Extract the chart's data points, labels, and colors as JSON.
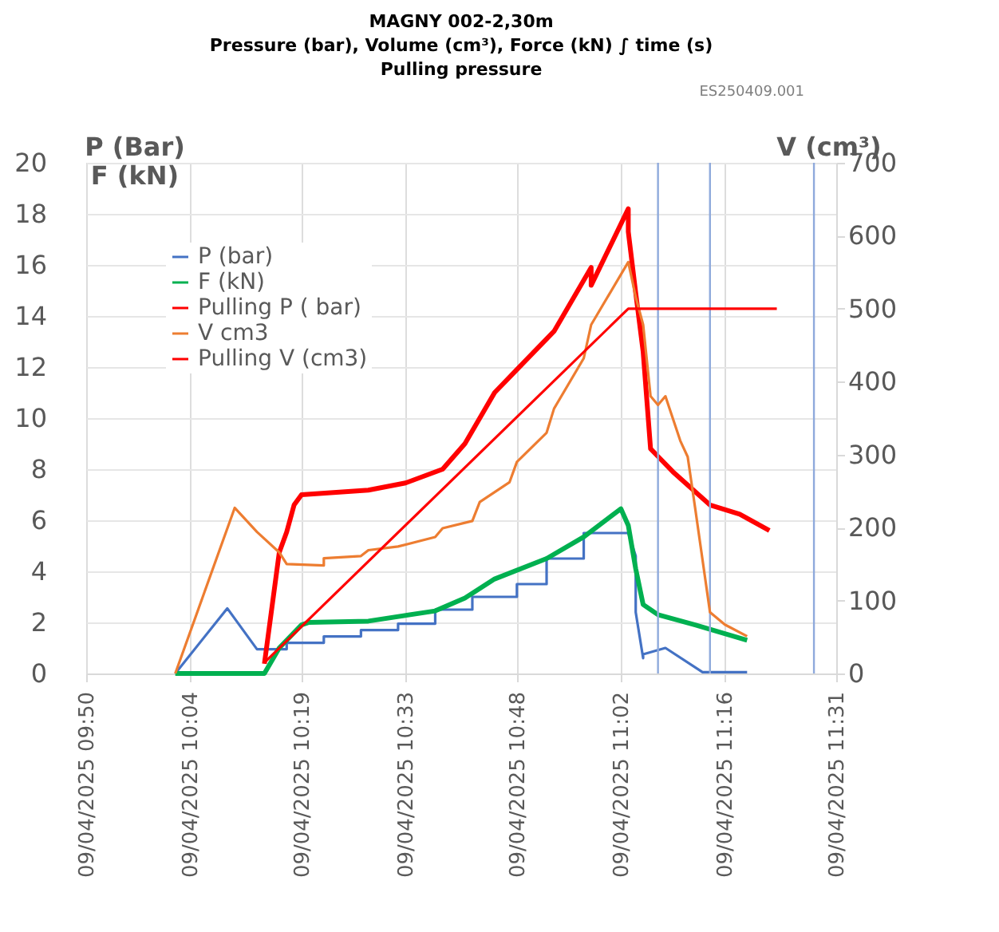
{
  "chart_data": {
    "type": "line",
    "title": "MAGNY 002-2,30m\nPressure (bar), Volume (cm³), Force (kN) ∫ time (s)\nPulling pressure",
    "ylabel": "P (Bar)\nF (kN)",
    "y2label": "V (cm³)",
    "annotations": [
      "ES250409.001"
    ],
    "xlim": [
      "2025-04-09T09:50",
      "2025-04-09T11:31"
    ],
    "xticks": [
      {
        "value": "2025-04-09T09:50",
        "label": "09/04/2025 09:50"
      },
      {
        "value": "2025-04-09T10:04",
        "label": "09/04/2025 10:04"
      },
      {
        "value": "2025-04-09T10:19",
        "label": "09/04/2025 10:19"
      },
      {
        "value": "2025-04-09T10:33",
        "label": "09/04/2025 10:33"
      },
      {
        "value": "2025-04-09T10:48",
        "label": "09/04/2025 10:48"
      },
      {
        "value": "2025-04-09T11:02",
        "label": "09/04/2025 11:02"
      },
      {
        "value": "2025-04-09T11:16",
        "label": "09/04/2025 11:16"
      },
      {
        "value": "2025-04-09T11:31",
        "label": "09/04/2025 11:31"
      }
    ],
    "ylim": [
      0,
      20
    ],
    "yticks": [
      0,
      2,
      4,
      6,
      8,
      10,
      12,
      14,
      16,
      18,
      20
    ],
    "y2lim": [
      0,
      700
    ],
    "y2ticks": [
      0,
      100,
      200,
      300,
      400,
      500,
      600,
      700
    ],
    "grid": true,
    "legend": "top left",
    "marker": "none",
    "line_style": "solid",
    "series": [
      {
        "name": "P (bar)",
        "color": "#4472c4",
        "x": [
          "2025-04-09T10:02",
          "2025-04-09T10:09",
          "2025-04-09T10:13",
          "2025-04-09T10:17",
          "2025-04-09T10:17",
          "2025-04-09T10:22",
          "2025-04-09T10:22",
          "2025-04-09T10:27",
          "2025-04-09T10:27",
          "2025-04-09T10:32",
          "2025-04-09T10:32",
          "2025-04-09T10:37",
          "2025-04-09T10:37",
          "2025-04-09T10:42",
          "2025-04-09T10:42",
          "2025-04-09T10:48",
          "2025-04-09T10:48",
          "2025-04-09T10:52",
          "2025-04-09T10:52",
          "2025-04-09T10:57",
          "2025-04-09T10:57",
          "2025-04-09T11:03",
          "2025-04-09T11:04",
          "2025-04-09T11:04",
          "2025-04-09T11:05",
          "2025-04-09T11:05",
          "2025-04-09T11:08",
          "2025-04-09T11:13",
          "2025-04-09T11:19"
        ],
        "values": [
          0,
          2.55,
          0.95,
          0.95,
          1.2,
          1.2,
          1.45,
          1.45,
          1.7,
          1.7,
          1.95,
          1.95,
          2.5,
          2.5,
          3.0,
          3.0,
          3.5,
          3.5,
          4.5,
          4.5,
          5.5,
          5.5,
          4.6,
          2.4,
          0.6,
          0.75,
          1.0,
          0.05,
          0.05
        ]
      },
      {
        "name": "F (kN)",
        "color": "#00b050",
        "x": [
          "2025-04-09T10:02",
          "2025-04-09T10:14",
          "2025-04-09T10:16",
          "2025-04-09T10:19",
          "2025-04-09T10:20",
          "2025-04-09T10:28",
          "2025-04-09T10:37",
          "2025-04-09T10:41",
          "2025-04-09T10:45",
          "2025-04-09T10:52",
          "2025-04-09T10:57",
          "2025-04-09T11:02",
          "2025-04-09T11:03",
          "2025-04-09T11:04",
          "2025-04-09T11:05",
          "2025-04-09T11:07",
          "2025-04-09T11:12",
          "2025-04-09T11:19"
        ],
        "values": [
          0,
          0,
          1.0,
          1.9,
          2.0,
          2.05,
          2.45,
          2.95,
          3.7,
          4.5,
          5.35,
          6.45,
          5.8,
          4.1,
          2.7,
          2.3,
          1.9,
          1.3
        ]
      },
      {
        "name": "Pulling P ( bar)",
        "color": "#ff0000",
        "x": [
          "2025-04-09T10:14",
          "2025-04-09T10:16",
          "2025-04-09T10:17",
          "2025-04-09T10:18",
          "2025-04-09T10:19",
          "2025-04-09T10:28",
          "2025-04-09T10:33",
          "2025-04-09T10:38",
          "2025-04-09T10:41",
          "2025-04-09T10:45",
          "2025-04-09T10:48",
          "2025-04-09T10:53",
          "2025-04-09T10:58",
          "2025-04-09T10:58",
          "2025-04-09T11:03",
          "2025-04-09T11:03",
          "2025-04-09T11:04",
          "2025-04-09T11:05",
          "2025-04-09T11:06",
          "2025-04-09T11:07",
          "2025-04-09T11:09",
          "2025-04-09T11:14",
          "2025-04-09T11:18",
          "2025-04-09T11:22"
        ],
        "values": [
          0.38,
          4.74,
          5.54,
          6.6,
          7.0,
          7.18,
          7.46,
          8.0,
          9.0,
          11.0,
          11.9,
          13.4,
          15.9,
          15.2,
          18.2,
          17.3,
          14.9,
          12.6,
          8.8,
          8.5,
          7.9,
          6.6,
          6.24,
          5.6
        ]
      },
      {
        "name": "V cm3",
        "color": "#ed7d31",
        "axis": "y2",
        "x": [
          "2025-04-09T10:02",
          "2025-04-09T10:10",
          "2025-04-09T10:13",
          "2025-04-09T10:16",
          "2025-04-09T10:17",
          "2025-04-09T10:22",
          "2025-04-09T10:22",
          "2025-04-09T10:27",
          "2025-04-09T10:28",
          "2025-04-09T10:32",
          "2025-04-09T10:37",
          "2025-04-09T10:38",
          "2025-04-09T10:42",
          "2025-04-09T10:43",
          "2025-04-09T10:47",
          "2025-04-09T10:48",
          "2025-04-09T10:52",
          "2025-04-09T10:53",
          "2025-04-09T10:57",
          "2025-04-09T10:58",
          "2025-04-09T11:03",
          "2025-04-09T11:04",
          "2025-04-09T11:05",
          "2025-04-09T11:06",
          "2025-04-09T11:07",
          "2025-04-09T11:08",
          "2025-04-09T11:10",
          "2025-04-09T11:11",
          "2025-04-09T11:12",
          "2025-04-09T11:14",
          "2025-04-09T11:16",
          "2025-04-09T11:19"
        ],
        "values": [
          0,
          227,
          194,
          166,
          150,
          148,
          158,
          161,
          169,
          174,
          187,
          199,
          209,
          235,
          262,
          290,
          330,
          363,
          432,
          478,
          564,
          516,
          478,
          380,
          368,
          380,
          319,
          297,
          227,
          84,
          67,
          51
        ]
      },
      {
        "name": "Pulling V (cm3)",
        "color": "#ff0000",
        "axis": "y2",
        "x": [
          "2025-04-09T10:14",
          "2025-04-09T11:03",
          "2025-04-09T11:23"
        ],
        "values": [
          15,
          500,
          500
        ]
      }
    ],
    "ref_lines": [
      {
        "axis": "x",
        "value": "2025-04-09T11:07",
        "color": "#8faadc"
      },
      {
        "axis": "x",
        "value": "2025-04-09T11:14",
        "color": "#8faadc"
      },
      {
        "axis": "x",
        "value": "2025-04-09T11:28",
        "color": "#8faadc"
      }
    ]
  }
}
